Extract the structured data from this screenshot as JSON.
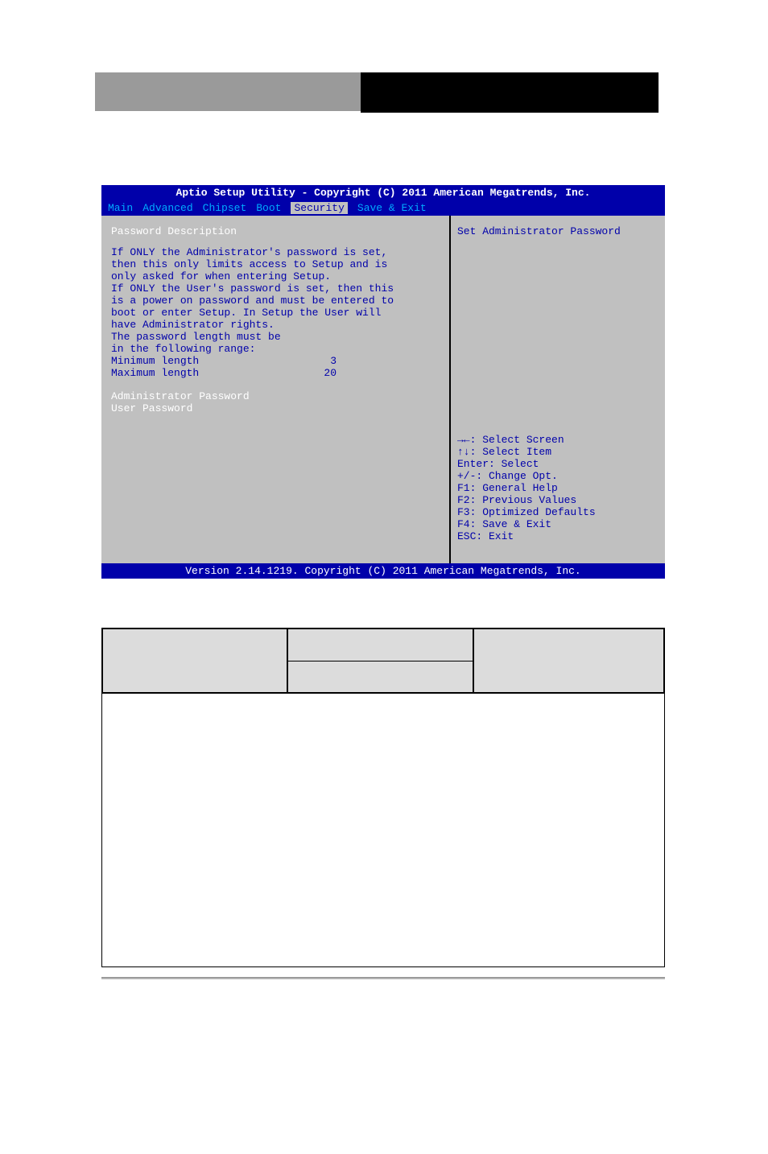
{
  "header": {},
  "bios": {
    "title": "Aptio Setup Utility - Copyright (C) 2011 American Megatrends, Inc.",
    "tabs": {
      "main": "Main",
      "advanced": "Advanced",
      "chipset": "Chipset",
      "boot": "Boot",
      "security": "Security",
      "save_exit": "Save & Exit"
    },
    "left": {
      "desc_title": "Password Description",
      "line1": "If ONLY the Administrator's password is set,",
      "line2": "then this only limits access to Setup and is",
      "line3": "only asked for when entering Setup.",
      "line4": "If ONLY the User's password is set, then this",
      "line5": "is a power on password and must be entered to",
      "line6": "boot or enter Setup. In Setup the User will",
      "line7": "have Administrator rights.",
      "line8": "The password length must be",
      "line9": "in the following range:",
      "min_label": "Minimum length",
      "min_value": "3",
      "max_label": "Maximum length",
      "max_value": "20",
      "admin_password": "Administrator Password",
      "user_password": "User Password"
    },
    "right": {
      "title": "Set Administrator Password",
      "help1": "→←: Select Screen",
      "help2": "↑↓: Select Item",
      "help3": "Enter: Select",
      "help4": "+/-: Change Opt.",
      "help5": "F1: General Help",
      "help6": "F2: Previous Values",
      "help7": "F3: Optimized Defaults",
      "help8": "F4: Save & Exit",
      "help9": "ESC: Exit"
    },
    "footer": "Version 2.14.1219. Copyright (C) 2011 American Megatrends, Inc."
  },
  "colors": {
    "bios_blue": "#0000aa",
    "bios_gray": "#c0c0c0",
    "bios_cyan": "#00aaff",
    "white": "#ffffff",
    "header_gray": "#9a9a9a",
    "black": "#000000",
    "table_gray": "#dcdcdc"
  }
}
